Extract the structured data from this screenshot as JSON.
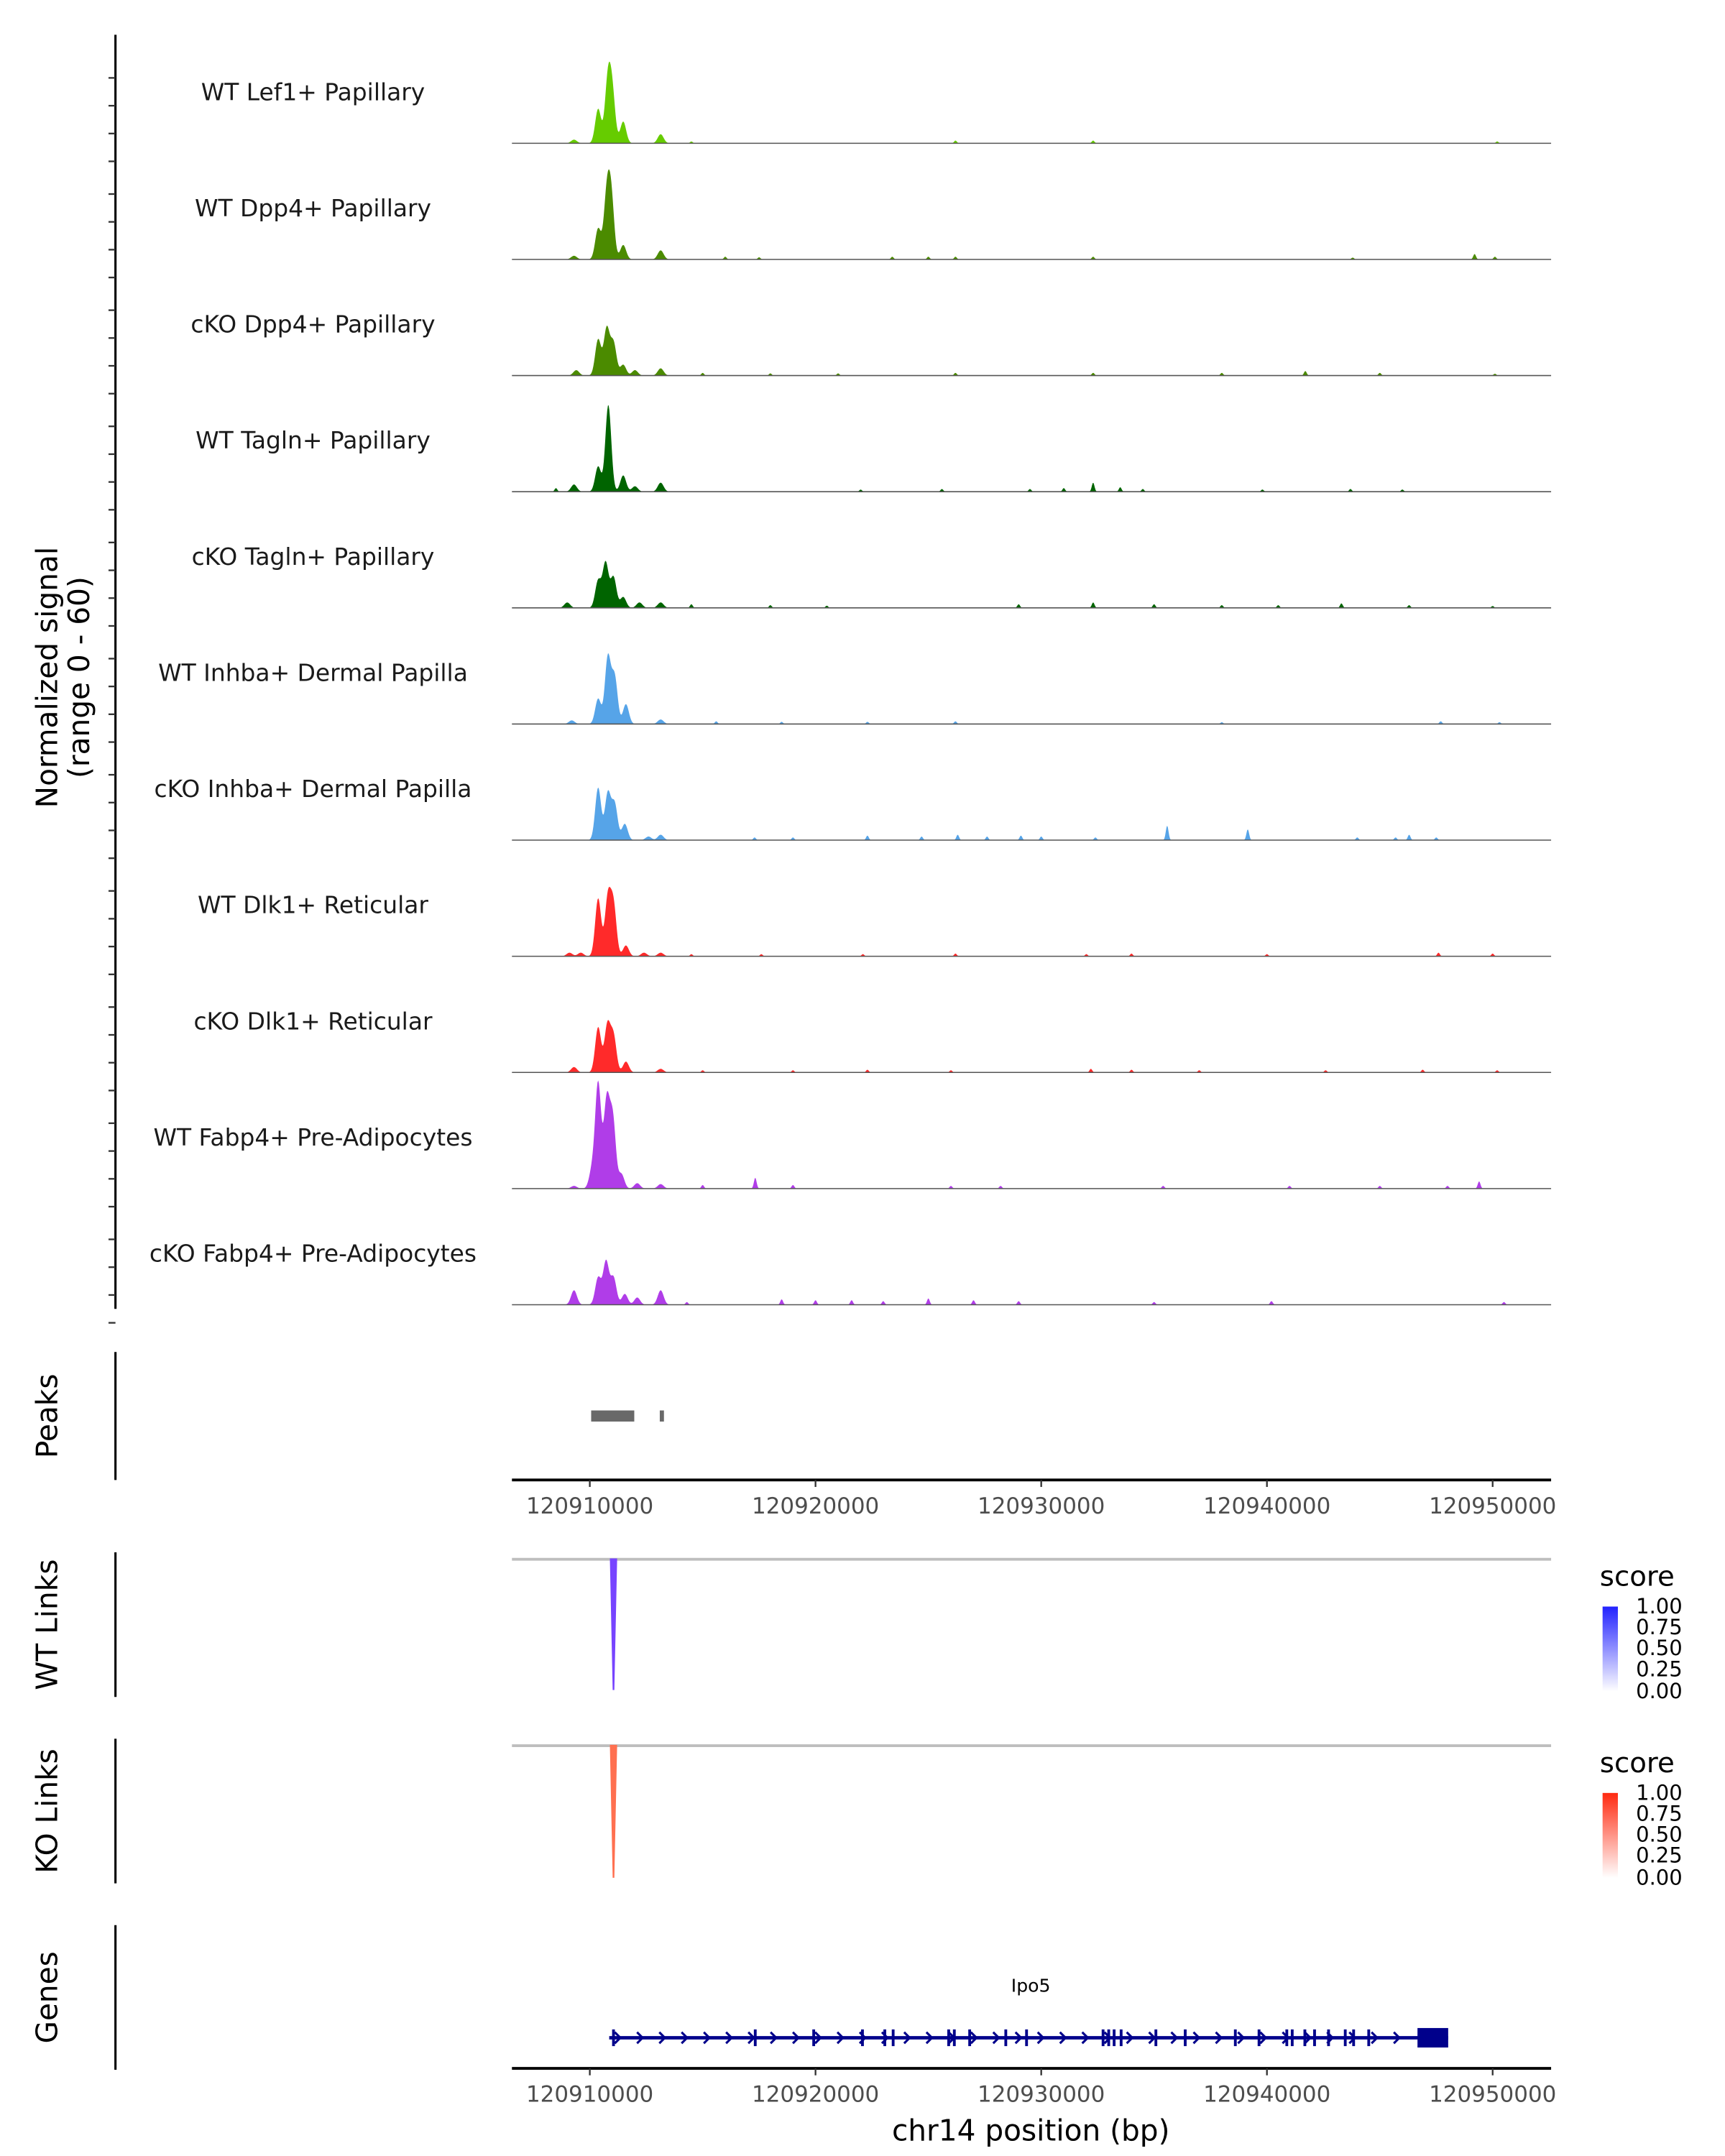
{
  "chart_data": {
    "type": "area",
    "title": "",
    "ylabel": "Normalized signal",
    "ylabel_sub": "(range 0 - 60)",
    "ylim": [
      0,
      60
    ],
    "xlim": [
      120906550,
      120952590
    ],
    "xlabel": "chr14 position (bp)",
    "x_ticks": [
      120910000,
      120920000,
      120930000,
      120940000,
      120950000
    ],
    "x_tick_labels": [
      "120910000",
      "120920000",
      "120930000",
      "120940000",
      "120950000"
    ],
    "tracks": [
      {
        "name": "WT Lef1+ Papillary",
        "color": "#66cc00",
        "peaks": [
          [
            120909300,
            2
          ],
          [
            120910370,
            19
          ],
          [
            120910800,
            34
          ],
          [
            120911000,
            26
          ],
          [
            120911480,
            12
          ],
          [
            120913140,
            5
          ]
        ],
        "minor": [
          [
            120914500,
            1
          ],
          [
            120926200,
            1.5
          ],
          [
            120932300,
            1.5
          ],
          [
            120950200,
            1
          ]
        ]
      },
      {
        "name": "WT Dpp4+ Papillary",
        "color": "#4b8b00",
        "peaks": [
          [
            120909300,
            2
          ],
          [
            120910370,
            17
          ],
          [
            120910750,
            34
          ],
          [
            120910950,
            33
          ],
          [
            120911480,
            8
          ],
          [
            120913140,
            5
          ]
        ],
        "minor": [
          [
            120916000,
            1.5
          ],
          [
            120917500,
            1.2
          ],
          [
            120923400,
            1.5
          ],
          [
            120925000,
            1.5
          ],
          [
            120926200,
            1.5
          ],
          [
            120932300,
            1.5
          ],
          [
            120943800,
            1
          ],
          [
            120949200,
            3
          ],
          [
            120950100,
            1.5
          ]
        ]
      },
      {
        "name": "cKO Dpp4+ Papillary",
        "color": "#4b8b00",
        "peaks": [
          [
            120909400,
            3
          ],
          [
            120910370,
            20
          ],
          [
            120910750,
            26
          ],
          [
            120911050,
            18
          ],
          [
            120911480,
            6
          ],
          [
            120912000,
            3
          ],
          [
            120913140,
            4
          ]
        ],
        "minor": [
          [
            120915000,
            1.5
          ],
          [
            120918000,
            1.2
          ],
          [
            120921000,
            1.2
          ],
          [
            120926200,
            1.5
          ],
          [
            120932300,
            1.5
          ],
          [
            120938000,
            1.5
          ],
          [
            120941700,
            2.5
          ],
          [
            120945000,
            1.5
          ],
          [
            120950100,
            1
          ]
        ]
      },
      {
        "name": "WT Tagln+ Papillary",
        "color": "#006400",
        "peaks": [
          [
            120909300,
            4
          ],
          [
            120910370,
            14
          ],
          [
            120910820,
            48
          ],
          [
            120911480,
            9
          ],
          [
            120912000,
            3
          ],
          [
            120913140,
            5
          ]
        ],
        "minor": [
          [
            120908500,
            2
          ],
          [
            120922000,
            1.2
          ],
          [
            120925600,
            1.5
          ],
          [
            120929500,
            1.5
          ],
          [
            120931000,
            2
          ],
          [
            120932300,
            5
          ],
          [
            120933500,
            2.5
          ],
          [
            120934500,
            1.5
          ],
          [
            120939800,
            1.2
          ],
          [
            120943700,
            1.5
          ],
          [
            120946000,
            1.2
          ]
        ]
      },
      {
        "name": "cKO Tagln+ Papillary",
        "color": "#006400",
        "peaks": [
          [
            120909000,
            3
          ],
          [
            120910370,
            15
          ],
          [
            120910700,
            25
          ],
          [
            120911050,
            17
          ],
          [
            120911480,
            6
          ],
          [
            120912200,
            3
          ],
          [
            120913140,
            3
          ]
        ],
        "minor": [
          [
            120914500,
            2
          ],
          [
            120918000,
            1.5
          ],
          [
            120920500,
            1.2
          ],
          [
            120929000,
            2
          ],
          [
            120932300,
            3
          ],
          [
            120935000,
            2
          ],
          [
            120938000,
            1.5
          ],
          [
            120940500,
            1.5
          ],
          [
            120943300,
            2.5
          ],
          [
            120946300,
            1.5
          ],
          [
            120950000,
            1
          ]
        ]
      },
      {
        "name": "WT Inhba+ Dermal Papilla",
        "color": "#56a4e8",
        "peaks": [
          [
            120909200,
            2
          ],
          [
            120910370,
            14
          ],
          [
            120910800,
            37
          ],
          [
            120911100,
            26
          ],
          [
            120911600,
            11
          ],
          [
            120913140,
            2.5
          ]
        ],
        "minor": [
          [
            120915600,
            1.5
          ],
          [
            120918500,
            1.2
          ],
          [
            120922300,
            1.2
          ],
          [
            120926200,
            1.5
          ],
          [
            120938000,
            1
          ],
          [
            120947700,
            1.5
          ],
          [
            120950300,
            1
          ]
        ]
      },
      {
        "name": "cKO Inhba+ Dermal Papilla",
        "color": "#56a4e8",
        "peaks": [
          [
            120910370,
            29
          ],
          [
            120910800,
            26
          ],
          [
            120911100,
            20
          ],
          [
            120911550,
            9
          ],
          [
            120912600,
            2
          ],
          [
            120913140,
            3
          ]
        ],
        "minor": [
          [
            120917300,
            1.5
          ],
          [
            120919000,
            1.5
          ],
          [
            120922300,
            2.5
          ],
          [
            120924700,
            2
          ],
          [
            120926300,
            3
          ],
          [
            120927600,
            2
          ],
          [
            120929100,
            2.5
          ],
          [
            120930000,
            2
          ],
          [
            120932400,
            1.5
          ],
          [
            120935580,
            8
          ],
          [
            120939150,
            6
          ],
          [
            120944000,
            1.5
          ],
          [
            120945700,
            1.5
          ],
          [
            120946300,
            3
          ],
          [
            120947500,
            1.5
          ]
        ]
      },
      {
        "name": "WT Dlk1+ Reticular",
        "color": "#ff2a2a",
        "peaks": [
          [
            120909100,
            2
          ],
          [
            120909600,
            2
          ],
          [
            120910370,
            32
          ],
          [
            120910800,
            32
          ],
          [
            120911050,
            28
          ],
          [
            120911600,
            6
          ],
          [
            120912400,
            2
          ],
          [
            120913140,
            2
          ]
        ],
        "minor": [
          [
            120914500,
            1.2
          ],
          [
            120917600,
            1.2
          ],
          [
            120922100,
            1.2
          ],
          [
            120926200,
            1.5
          ],
          [
            120932000,
            1.2
          ],
          [
            120934000,
            1.5
          ],
          [
            120940000,
            1.2
          ],
          [
            120947600,
            2
          ],
          [
            120950000,
            1.5
          ]
        ]
      },
      {
        "name": "cKO Dlk1+ Reticular",
        "color": "#ff2a2a",
        "peaks": [
          [
            120909300,
            3
          ],
          [
            120910370,
            25
          ],
          [
            120910780,
            26
          ],
          [
            120911050,
            20
          ],
          [
            120911600,
            6
          ],
          [
            120913140,
            2
          ]
        ],
        "minor": [
          [
            120915000,
            1.2
          ],
          [
            120919000,
            1.2
          ],
          [
            120922300,
            1.5
          ],
          [
            120926000,
            1.2
          ],
          [
            120932200,
            2
          ],
          [
            120934000,
            1.5
          ],
          [
            120937000,
            1.2
          ],
          [
            120942600,
            1.2
          ],
          [
            120946900,
            1.5
          ],
          [
            120950200,
            1.2
          ]
        ]
      },
      {
        "name": "WT Fabp4+ Pre-Adipocytes",
        "color": "#b03de8",
        "peaks": [
          [
            120909300,
            1.5
          ],
          [
            120910100,
            10
          ],
          [
            120910370,
            58
          ],
          [
            120910750,
            48
          ],
          [
            120911020,
            38
          ],
          [
            120911400,
            8
          ],
          [
            120912100,
            3
          ],
          [
            120913140,
            2.5
          ]
        ],
        "minor": [
          [
            120915000,
            2
          ],
          [
            120917330,
            6
          ],
          [
            120919000,
            2
          ],
          [
            120926000,
            1.5
          ],
          [
            120928200,
            1.5
          ],
          [
            120935400,
            1.5
          ],
          [
            120941000,
            1.5
          ],
          [
            120945000,
            1.5
          ],
          [
            120948000,
            1.5
          ],
          [
            120949400,
            4
          ]
        ]
      },
      {
        "name": "cKO Fabp4+ Pre-Adipocytes",
        "color": "#b03de8",
        "peaks": [
          [
            120909300,
            8
          ],
          [
            120910370,
            15
          ],
          [
            120910720,
            24
          ],
          [
            120911050,
            15
          ],
          [
            120911550,
            6
          ],
          [
            120912100,
            4
          ],
          [
            120913140,
            8
          ]
        ],
        "minor": [
          [
            120914300,
            1.5
          ],
          [
            120918500,
            3
          ],
          [
            120920000,
            2.5
          ],
          [
            120921600,
            2.5
          ],
          [
            120923000,
            2
          ],
          [
            120925000,
            3.5
          ],
          [
            120927000,
            2.5
          ],
          [
            120929000,
            2
          ],
          [
            120935000,
            1.5
          ],
          [
            120940200,
            2
          ],
          [
            120950500,
            1.5
          ]
        ]
      }
    ],
    "peaks_track": {
      "label": "Peaks",
      "color": "#696969",
      "regions": [
        [
          120910060,
          120911970
        ],
        [
          120913100,
          120913220
        ]
      ]
    },
    "links": [
      {
        "label": "WT Links",
        "color": "#7744ff",
        "anchor": 120911050,
        "score": 0.75,
        "legend": {
          "title": "score",
          "low": "#ffffff",
          "high": "#2222ff",
          "labels": [
            "1.00",
            "0.75",
            "0.50",
            "0.25",
            "0.00"
          ]
        }
      },
      {
        "label": "KO Links",
        "color": "#ff7050",
        "anchor": 120911050,
        "score": 0.65,
        "legend": {
          "title": "score",
          "low": "#ffffff",
          "high": "#ff2a10",
          "labels": [
            "1.00",
            "0.75",
            "0.50",
            "0.25",
            "0.00"
          ]
        }
      }
    ],
    "genes": {
      "label": "Genes",
      "name": "Ipo5",
      "color": "#00008b",
      "start": 120910860,
      "end": 120948030,
      "exons": [
        120911050,
        120917330,
        120919920,
        120922080,
        120923070,
        120923440,
        120925900,
        120926150,
        120926830,
        120928430,
        120929350,
        120932740,
        120932990,
        120933230,
        120933540,
        120935080,
        120936380,
        120938600,
        120939650,
        120940880,
        120941120,
        120941680,
        120942110,
        120942730,
        120943470,
        120943840,
        120944510
      ],
      "last_exon": [
        120946670,
        120948030
      ]
    }
  }
}
